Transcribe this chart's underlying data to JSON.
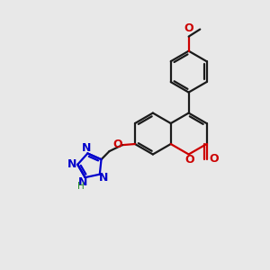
{
  "background_color": "#e8e8e8",
  "bond_color": "#1a1a1a",
  "oxygen_color": "#cc0000",
  "nitrogen_color": "#0000cc",
  "hydrogen_color": "#228B22",
  "line_width": 1.6,
  "figsize": [
    3.0,
    3.0
  ],
  "dpi": 100,
  "xlim": [
    0,
    10
  ],
  "ylim": [
    0,
    10
  ],
  "font_size": 8.5,
  "bl": 0.82
}
